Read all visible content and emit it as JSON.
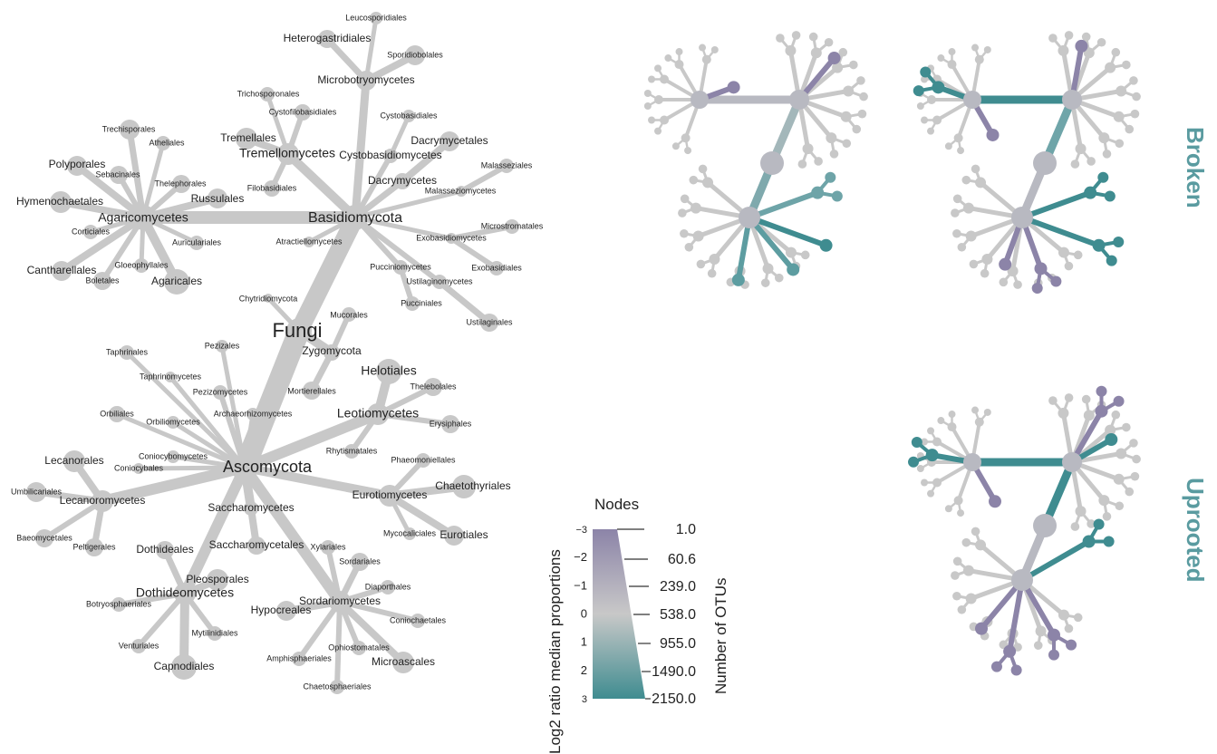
{
  "colors": {
    "gray": "#c8c8c8",
    "purple": "#8c84a8",
    "teal": "#3f8c90",
    "mid_gray": "#b8b9c1",
    "label": "#222222",
    "panel_text": "#5a9ba0"
  },
  "main_tree": {
    "nodes": [
      {
        "id": "fungi",
        "label": "Fungi"
      },
      {
        "id": "basidio",
        "label": "Basidiomycota"
      },
      {
        "id": "asco",
        "label": "Ascomycota"
      },
      {
        "id": "zygo",
        "label": "Zygomycota"
      },
      {
        "id": "chytrid",
        "label": "Chytridiomycota"
      },
      {
        "id": "mucorales",
        "label": "Mucorales"
      },
      {
        "id": "mortierellales",
        "label": "Mortierellales"
      },
      {
        "id": "agarico",
        "label": "Agaricomycetes"
      },
      {
        "id": "polyporales",
        "label": "Polyporales"
      },
      {
        "id": "hymeno",
        "label": "Hymenochaetales"
      },
      {
        "id": "trechis",
        "label": "Trechisporales"
      },
      {
        "id": "athel",
        "label": "Atheliales"
      },
      {
        "id": "sebac",
        "label": "Sebacinales"
      },
      {
        "id": "thele",
        "label": "Thelephorales"
      },
      {
        "id": "russ",
        "label": "Russulales"
      },
      {
        "id": "cortic",
        "label": "Corticiales"
      },
      {
        "id": "auric",
        "label": "Auriculariales"
      },
      {
        "id": "canth",
        "label": "Cantharellales"
      },
      {
        "id": "gloeo",
        "label": "Gloeophyllales"
      },
      {
        "id": "bolet",
        "label": "Boletales"
      },
      {
        "id": "agaric",
        "label": "Agaricales"
      },
      {
        "id": "tremello",
        "label": "Tremellomycetes"
      },
      {
        "id": "tremellales",
        "label": "Tremellales"
      },
      {
        "id": "trichos",
        "label": "Trichosporonales"
      },
      {
        "id": "cystofilo",
        "label": "Cystofilobasidiales"
      },
      {
        "id": "filob",
        "label": "Filobasidiales"
      },
      {
        "id": "microbotryo",
        "label": "Microbotryomycetes"
      },
      {
        "id": "heterogas",
        "label": "Heterogastridiales"
      },
      {
        "id": "leucospor",
        "label": "Leucosporidiales"
      },
      {
        "id": "sporidio",
        "label": "Sporidiobolales"
      },
      {
        "id": "cystobasidio",
        "label": "Cystobasidiomycetes"
      },
      {
        "id": "cystobasidiales",
        "label": "Cystobasidiales"
      },
      {
        "id": "dacrymycetes",
        "label": "Dacrymycetes"
      },
      {
        "id": "dacrymycetales",
        "label": "Dacrymycetales"
      },
      {
        "id": "malasseziomy",
        "label": "Malasseziomycetes"
      },
      {
        "id": "malasseziales",
        "label": "Malasseziales"
      },
      {
        "id": "exobasidio",
        "label": "Exobasidiomycetes"
      },
      {
        "id": "microstroma",
        "label": "Microstromatales"
      },
      {
        "id": "exobasidiales",
        "label": "Exobasidiales"
      },
      {
        "id": "pucciniomy",
        "label": "Pucciniomycetes"
      },
      {
        "id": "pucciniales",
        "label": "Pucciniales"
      },
      {
        "id": "ustilagino",
        "label": "Ustilaginomycetes"
      },
      {
        "id": "ustilaginales",
        "label": "Ustilaginales"
      },
      {
        "id": "atractiello",
        "label": "Atractiellomycetes"
      },
      {
        "id": "taphrinales",
        "label": "Taphrinales"
      },
      {
        "id": "taphrinomy",
        "label": "Taphrinomycetes"
      },
      {
        "id": "pezizales",
        "label": "Pezizales"
      },
      {
        "id": "pezizomy",
        "label": "Pezizomycetes"
      },
      {
        "id": "orbiliales",
        "label": "Orbiliales"
      },
      {
        "id": "orbiliomy",
        "label": "Orbiliomycetes"
      },
      {
        "id": "archaeo",
        "label": "Archaeorhizomycetes"
      },
      {
        "id": "leotio",
        "label": "Leotiomycetes"
      },
      {
        "id": "helotiales",
        "label": "Helotiales"
      },
      {
        "id": "thelebol",
        "label": "Thelebolales"
      },
      {
        "id": "erysiph",
        "label": "Erysiphales"
      },
      {
        "id": "rhytism",
        "label": "Rhytismatales"
      },
      {
        "id": "euro",
        "label": "Eurotiomycetes"
      },
      {
        "id": "phaeomon",
        "label": "Phaeomoniellales"
      },
      {
        "id": "chaeto",
        "label": "Chaetothyriales"
      },
      {
        "id": "mycocal",
        "label": "Mycocaliciales"
      },
      {
        "id": "eurotiales",
        "label": "Eurotiales"
      },
      {
        "id": "coniocy",
        "label": "Coniocybomycetes"
      },
      {
        "id": "coniocybales",
        "label": "Coniocybales"
      },
      {
        "id": "lecanoro",
        "label": "Lecanoromycetes"
      },
      {
        "id": "lecanorales",
        "label": "Lecanorales"
      },
      {
        "id": "umbilic",
        "label": "Umbilicariales"
      },
      {
        "id": "baeomy",
        "label": "Baeomycetales"
      },
      {
        "id": "peltig",
        "label": "Peltigerales"
      },
      {
        "id": "saccharo",
        "label": "Saccharomycetes"
      },
      {
        "id": "saccharoales",
        "label": "Saccharomycetales"
      },
      {
        "id": "dothideo",
        "label": "Dothideomycetes"
      },
      {
        "id": "dothideales",
        "label": "Dothideales"
      },
      {
        "id": "pleospor",
        "label": "Pleosporales"
      },
      {
        "id": "botryo",
        "label": "Botryosphaeriales"
      },
      {
        "id": "venturi",
        "label": "Venturiales"
      },
      {
        "id": "mytilin",
        "label": "Mytilinidiales"
      },
      {
        "id": "capnod",
        "label": "Capnodiales"
      },
      {
        "id": "sordario",
        "label": "Sordariomycetes"
      },
      {
        "id": "xylariales",
        "label": "Xylariales"
      },
      {
        "id": "sordariales",
        "label": "Sordariales"
      },
      {
        "id": "diaport",
        "label": "Diaporthales"
      },
      {
        "id": "conioch",
        "label": "Coniochaetales"
      },
      {
        "id": "hypocre",
        "label": "Hypocreales"
      },
      {
        "id": "ophiosto",
        "label": "Ophiostomatales"
      },
      {
        "id": "amphisph",
        "label": "Amphisphaeriales"
      },
      {
        "id": "microasc",
        "label": "Microascales"
      },
      {
        "id": "chaetosph",
        "label": "Chaetosphaeriales"
      }
    ]
  },
  "legend": {
    "nodes_title": "Nodes",
    "log2_label": "Log2 ratio median proportions",
    "otu_label": "Number of OTUs",
    "log2_ticks": [
      "−3",
      "−2",
      "−1",
      "0",
      "1",
      "2",
      "3"
    ],
    "otu_values": [
      "1.0",
      "60.6",
      "239.0",
      "538.0",
      "955.0",
      "1490.0",
      "2150.0"
    ]
  },
  "panels": {
    "broken_label": "Broken",
    "uprooted_label": "Uprooted"
  }
}
